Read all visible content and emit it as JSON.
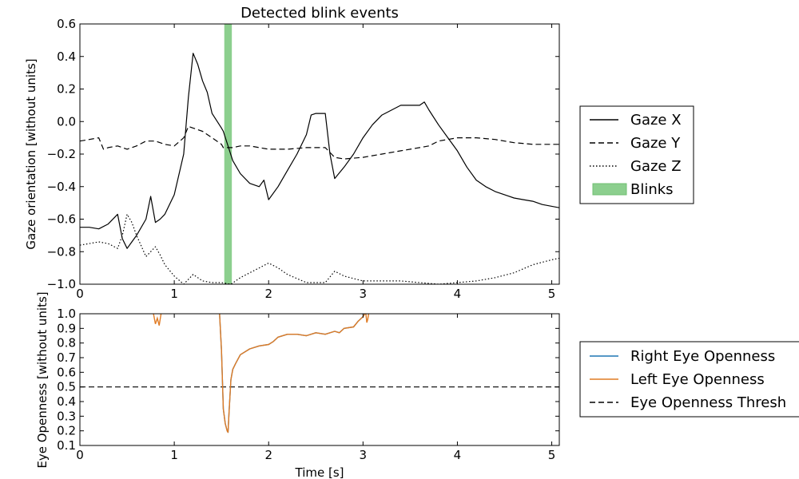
{
  "chart_data": [
    {
      "type": "line",
      "title": "Detected blink events",
      "xlabel": "",
      "ylabel": "Gaze orientation [without units]",
      "xlim": [
        0,
        5.08
      ],
      "ylim": [
        -1.0,
        0.6
      ],
      "xticks": [
        "0",
        "1",
        "2",
        "3",
        "4",
        "5"
      ],
      "yticks": [
        "−1.0",
        "−0.8",
        "−0.6",
        "−0.4",
        "−0.2",
        "0.0",
        "0.2",
        "0.4",
        "0.6"
      ],
      "legend_position": "right",
      "blinks": [
        {
          "start": 1.53,
          "end": 1.61
        }
      ],
      "blink_color": "#8ccf8e",
      "series": [
        {
          "name": "Gaze X",
          "style": "solid",
          "x": [
            0.0,
            0.1,
            0.2,
            0.3,
            0.4,
            0.45,
            0.5,
            0.55,
            0.6,
            0.7,
            0.75,
            0.8,
            0.85,
            0.9,
            1.0,
            1.1,
            1.15,
            1.2,
            1.25,
            1.3,
            1.35,
            1.4,
            1.5,
            1.52,
            1.62,
            1.7,
            1.8,
            1.9,
            1.95,
            2.0,
            2.1,
            2.2,
            2.3,
            2.4,
            2.45,
            2.5,
            2.6,
            2.65,
            2.7,
            2.8,
            2.9,
            3.0,
            3.1,
            3.2,
            3.4,
            3.6,
            3.65,
            3.7,
            3.8,
            3.9,
            4.0,
            4.1,
            4.2,
            4.3,
            4.4,
            4.5,
            4.6,
            4.7,
            4.8,
            4.9,
            5.08
          ],
          "y": [
            -0.65,
            -0.65,
            -0.66,
            -0.63,
            -0.57,
            -0.72,
            -0.78,
            -0.74,
            -0.7,
            -0.6,
            -0.46,
            -0.62,
            -0.6,
            -0.57,
            -0.45,
            -0.2,
            0.15,
            0.42,
            0.35,
            0.25,
            0.18,
            0.05,
            -0.04,
            -0.06,
            -0.24,
            -0.32,
            -0.38,
            -0.4,
            -0.36,
            -0.48,
            -0.4,
            -0.3,
            -0.2,
            -0.08,
            0.04,
            0.05,
            0.05,
            -0.2,
            -0.35,
            -0.28,
            -0.2,
            -0.1,
            -0.02,
            0.04,
            0.1,
            0.1,
            0.12,
            0.07,
            -0.02,
            -0.1,
            -0.18,
            -0.28,
            -0.36,
            -0.4,
            -0.43,
            -0.45,
            -0.47,
            -0.48,
            -0.49,
            -0.51,
            -0.53
          ]
        },
        {
          "name": "Gaze Y",
          "style": "dashed",
          "x": [
            0.0,
            0.1,
            0.2,
            0.25,
            0.3,
            0.4,
            0.5,
            0.6,
            0.7,
            0.8,
            0.9,
            1.0,
            1.1,
            1.15,
            1.2,
            1.3,
            1.4,
            1.5,
            1.52,
            1.62,
            1.7,
            1.8,
            2.0,
            2.2,
            2.4,
            2.6,
            2.7,
            2.8,
            3.0,
            3.2,
            3.4,
            3.6,
            3.7,
            3.8,
            4.0,
            4.2,
            4.4,
            4.6,
            4.8,
            5.08
          ],
          "y": [
            -0.12,
            -0.11,
            -0.1,
            -0.17,
            -0.16,
            -0.15,
            -0.17,
            -0.15,
            -0.12,
            -0.12,
            -0.14,
            -0.15,
            -0.1,
            -0.03,
            -0.04,
            -0.06,
            -0.1,
            -0.14,
            -0.16,
            -0.16,
            -0.15,
            -0.15,
            -0.17,
            -0.17,
            -0.16,
            -0.16,
            -0.22,
            -0.23,
            -0.22,
            -0.2,
            -0.18,
            -0.16,
            -0.15,
            -0.12,
            -0.1,
            -0.1,
            -0.11,
            -0.13,
            -0.14,
            -0.14
          ]
        },
        {
          "name": "Gaze Z",
          "style": "dotted",
          "x": [
            0.0,
            0.2,
            0.3,
            0.4,
            0.45,
            0.5,
            0.55,
            0.6,
            0.7,
            0.8,
            0.85,
            0.9,
            1.0,
            1.1,
            1.15,
            1.2,
            1.3,
            1.4,
            1.5,
            1.6,
            1.7,
            1.8,
            1.9,
            2.0,
            2.1,
            2.2,
            2.4,
            2.6,
            2.7,
            2.8,
            3.0,
            3.2,
            3.4,
            3.6,
            3.8,
            4.0,
            4.2,
            4.4,
            4.6,
            4.8,
            5.0,
            5.08
          ],
          "y": [
            -0.76,
            -0.74,
            -0.75,
            -0.78,
            -0.7,
            -0.57,
            -0.62,
            -0.7,
            -0.83,
            -0.77,
            -0.82,
            -0.88,
            -0.95,
            -1.0,
            -0.97,
            -0.94,
            -0.98,
            -0.99,
            -0.99,
            -1.0,
            -0.96,
            -0.93,
            -0.9,
            -0.87,
            -0.9,
            -0.94,
            -0.99,
            -0.99,
            -0.92,
            -0.95,
            -0.98,
            -0.98,
            -0.98,
            -0.99,
            -1.0,
            -0.99,
            -0.98,
            -0.96,
            -0.93,
            -0.88,
            -0.85,
            -0.84
          ]
        }
      ]
    },
    {
      "type": "line",
      "title": "",
      "xlabel": "Time [s]",
      "ylabel": "Eye Openness [without units]",
      "xlim": [
        0,
        5.08
      ],
      "ylim": [
        0.1,
        1.0
      ],
      "xticks": [
        "0",
        "1",
        "2",
        "3",
        "4",
        "5"
      ],
      "yticks": [
        "0.1",
        "0.2",
        "0.3",
        "0.4",
        "0.5",
        "0.6",
        "0.7",
        "0.8",
        "0.9",
        "1.0"
      ],
      "threshold": 0.5,
      "legend_position": "right",
      "series": [
        {
          "name": "Right Eye Openness",
          "color": "#1f77b4",
          "style": "solid",
          "x": [
            1.48,
            1.5,
            1.52,
            1.54,
            1.56,
            1.57,
            1.58,
            1.6,
            1.62,
            1.65,
            1.7,
            1.8,
            1.9,
            2.0,
            2.05,
            2.1,
            2.2,
            2.3,
            2.4,
            2.5,
            2.6,
            2.7,
            2.75,
            2.8,
            2.9,
            2.95,
            3.0,
            3.02
          ],
          "y": [
            1.0,
            0.75,
            0.35,
            0.25,
            0.2,
            0.19,
            0.32,
            0.55,
            0.62,
            0.66,
            0.72,
            0.76,
            0.78,
            0.79,
            0.81,
            0.84,
            0.86,
            0.86,
            0.85,
            0.87,
            0.86,
            0.88,
            0.87,
            0.9,
            0.91,
            0.95,
            0.98,
            1.0
          ]
        },
        {
          "name": "Left Eye Openness",
          "color": "#e07b24",
          "style": "solid",
          "x": [
            1.48,
            1.5,
            1.52,
            1.54,
            1.56,
            1.57,
            1.58,
            1.6,
            1.62,
            1.65,
            1.7,
            1.8,
            1.9,
            2.0,
            2.05,
            2.1,
            2.2,
            2.3,
            2.4,
            2.5,
            2.6,
            2.7,
            2.75,
            2.8,
            2.9,
            2.95,
            3.0,
            3.02
          ],
          "y": [
            1.0,
            0.75,
            0.35,
            0.25,
            0.2,
            0.19,
            0.32,
            0.55,
            0.62,
            0.66,
            0.72,
            0.76,
            0.78,
            0.79,
            0.81,
            0.84,
            0.86,
            0.86,
            0.85,
            0.87,
            0.86,
            0.88,
            0.87,
            0.9,
            0.91,
            0.95,
            0.98,
            1.0
          ]
        },
        {
          "name": "Eye Openness Thresh",
          "style": "dashed"
        }
      ],
      "spikes": [
        {
          "x": [
            0.78,
            0.8,
            0.82,
            0.84,
            0.86
          ],
          "y": [
            1.0,
            0.93,
            0.97,
            0.92,
            1.0
          ]
        },
        {
          "x": [
            3.03,
            3.04,
            3.05,
            3.06
          ],
          "y": [
            1.0,
            0.94,
            0.96,
            1.0
          ]
        }
      ]
    }
  ]
}
